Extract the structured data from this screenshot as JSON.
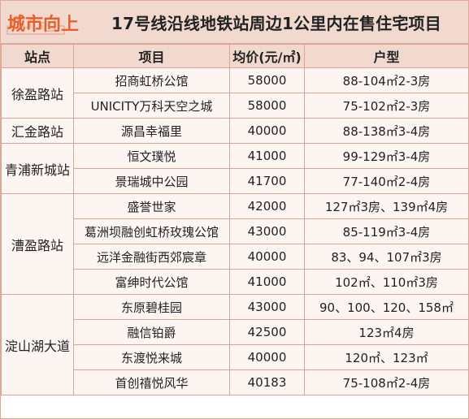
{
  "logo": {
    "text": "城市向上",
    "color": "#e3612e"
  },
  "title": "17号线沿线地铁站周边1公里内在售住宅项目",
  "headers": {
    "station": "站点",
    "project": "项目",
    "price": "均价(元/㎡)",
    "layout": "户型"
  },
  "stations": {
    "xuying": "徐盈路站",
    "huijin": "汇金路站",
    "qingpu": "青浦新城站",
    "caoying": "漕盈路站",
    "dianshan": "淀山湖大道"
  },
  "rows": [
    {
      "project": "招商虹桥公馆",
      "price": "58000",
      "layout": "88-104㎡2-3房"
    },
    {
      "project": "UNICITY万科天空之城",
      "price": "58000",
      "layout": "75-102㎡2-3房"
    },
    {
      "project": "源昌幸福里",
      "price": "40000",
      "layout": "88-138㎡3-4房"
    },
    {
      "project": "恒文璞悦",
      "price": "41000",
      "layout": "99-129㎡3-4房"
    },
    {
      "project": "景瑞城中公园",
      "price": "41700",
      "layout": "77-140㎡2-4房"
    },
    {
      "project": "盛誉世家",
      "price": "42000",
      "layout": "127㎡3房、139㎡4房"
    },
    {
      "project": "葛洲坝融创虹桥玫瑰公馆",
      "price": "43000",
      "layout": "85-119㎡3-4房"
    },
    {
      "project": "远洋金融街西郊宸章",
      "price": "40000",
      "layout": "83、94、107㎡3房"
    },
    {
      "project": "富绅时代公馆",
      "price": "41000",
      "layout": "102㎡、110㎡3房"
    },
    {
      "project": "东原碧桂园",
      "price": "43000",
      "layout": "90、100、120、158㎡"
    },
    {
      "project": "融信铂爵",
      "price": "42500",
      "layout": "123㎡4房"
    },
    {
      "project": "东渡悦来城",
      "price": "40000",
      "layout": "120㎡、123㎡"
    },
    {
      "project": "首创禧悦风华",
      "price": "40183",
      "layout": "75-108㎡2-4房"
    }
  ]
}
